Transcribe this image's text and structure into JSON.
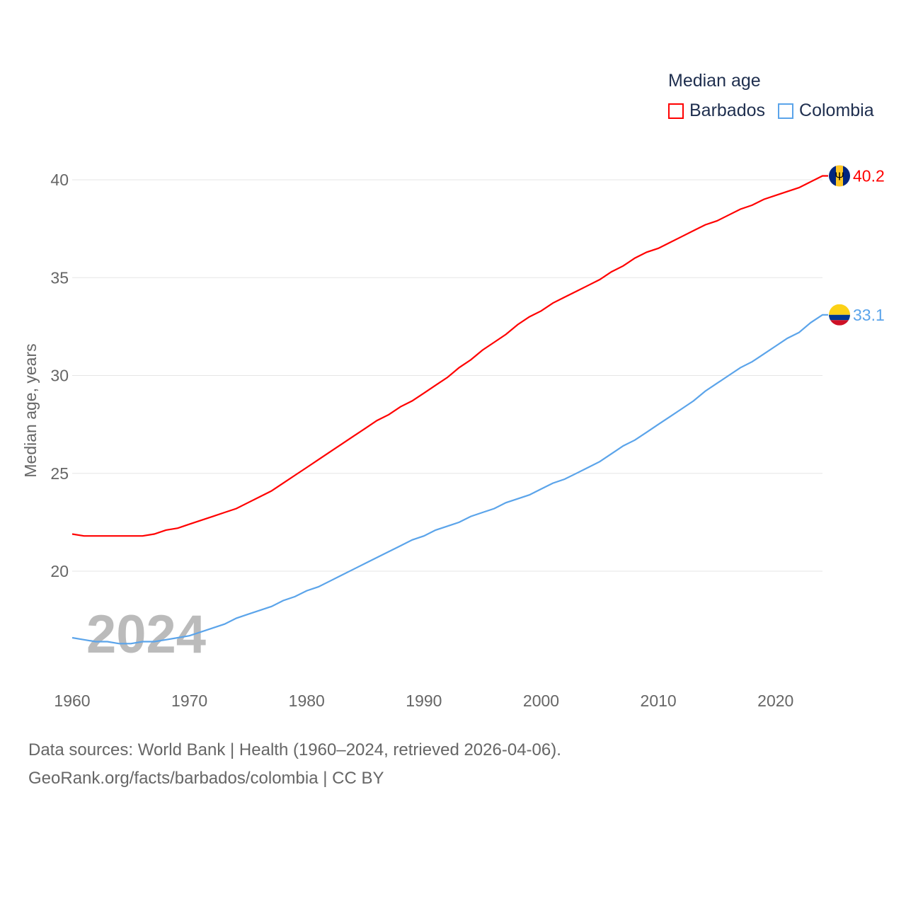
{
  "chart_data": {
    "type": "line",
    "title": "Median age",
    "xlabel": "",
    "ylabel": "Median age, years",
    "xlim": [
      1960,
      2024
    ],
    "ylim": [
      15,
      41
    ],
    "x_ticks": [
      1960,
      1970,
      1980,
      1990,
      2000,
      2010,
      2020
    ],
    "y_ticks": [
      20,
      25,
      30,
      35,
      40
    ],
    "grid": true,
    "legend_position": "top-right",
    "year_label": "2024",
    "x": [
      1960,
      1961,
      1962,
      1963,
      1964,
      1965,
      1966,
      1967,
      1968,
      1969,
      1970,
      1971,
      1972,
      1973,
      1974,
      1975,
      1976,
      1977,
      1978,
      1979,
      1980,
      1981,
      1982,
      1983,
      1984,
      1985,
      1986,
      1987,
      1988,
      1989,
      1990,
      1991,
      1992,
      1993,
      1994,
      1995,
      1996,
      1997,
      1998,
      1999,
      2000,
      2001,
      2002,
      2003,
      2004,
      2005,
      2006,
      2007,
      2008,
      2009,
      2010,
      2011,
      2012,
      2013,
      2014,
      2015,
      2016,
      2017,
      2018,
      2019,
      2020,
      2021,
      2022,
      2023,
      2024
    ],
    "series": [
      {
        "name": "Barbados",
        "color": "#ff0000",
        "end_label": "40.2",
        "values": [
          21.9,
          21.8,
          21.8,
          21.8,
          21.8,
          21.8,
          21.8,
          21.9,
          22.1,
          22.2,
          22.4,
          22.6,
          22.8,
          23.0,
          23.2,
          23.5,
          23.8,
          24.1,
          24.5,
          24.9,
          25.3,
          25.7,
          26.1,
          26.5,
          26.9,
          27.3,
          27.7,
          28.0,
          28.4,
          28.7,
          29.1,
          29.5,
          29.9,
          30.4,
          30.8,
          31.3,
          31.7,
          32.1,
          32.6,
          33.0,
          33.3,
          33.7,
          34.0,
          34.3,
          34.6,
          34.9,
          35.3,
          35.6,
          36.0,
          36.3,
          36.5,
          36.8,
          37.1,
          37.4,
          37.7,
          37.9,
          38.2,
          38.5,
          38.7,
          39.0,
          39.2,
          39.4,
          39.6,
          39.9,
          40.2
        ]
      },
      {
        "name": "Colombia",
        "color": "#5ba4ea",
        "end_label": "33.1",
        "values": [
          16.6,
          16.5,
          16.4,
          16.4,
          16.3,
          16.3,
          16.4,
          16.4,
          16.5,
          16.6,
          16.7,
          16.9,
          17.1,
          17.3,
          17.6,
          17.8,
          18.0,
          18.2,
          18.5,
          18.7,
          19.0,
          19.2,
          19.5,
          19.8,
          20.1,
          20.4,
          20.7,
          21.0,
          21.3,
          21.6,
          21.8,
          22.1,
          22.3,
          22.5,
          22.8,
          23.0,
          23.2,
          23.5,
          23.7,
          23.9,
          24.2,
          24.5,
          24.7,
          25.0,
          25.3,
          25.6,
          26.0,
          26.4,
          26.7,
          27.1,
          27.5,
          27.9,
          28.3,
          28.7,
          29.2,
          29.6,
          30.0,
          30.4,
          30.7,
          31.1,
          31.5,
          31.9,
          32.2,
          32.7,
          33.1
        ]
      }
    ]
  },
  "sources": {
    "line1": "Data sources: World Bank | Health (1960–2024, retrieved 2026-04-06).",
    "line2": "GeoRank.org/facts/barbados/colombia | CC BY"
  }
}
